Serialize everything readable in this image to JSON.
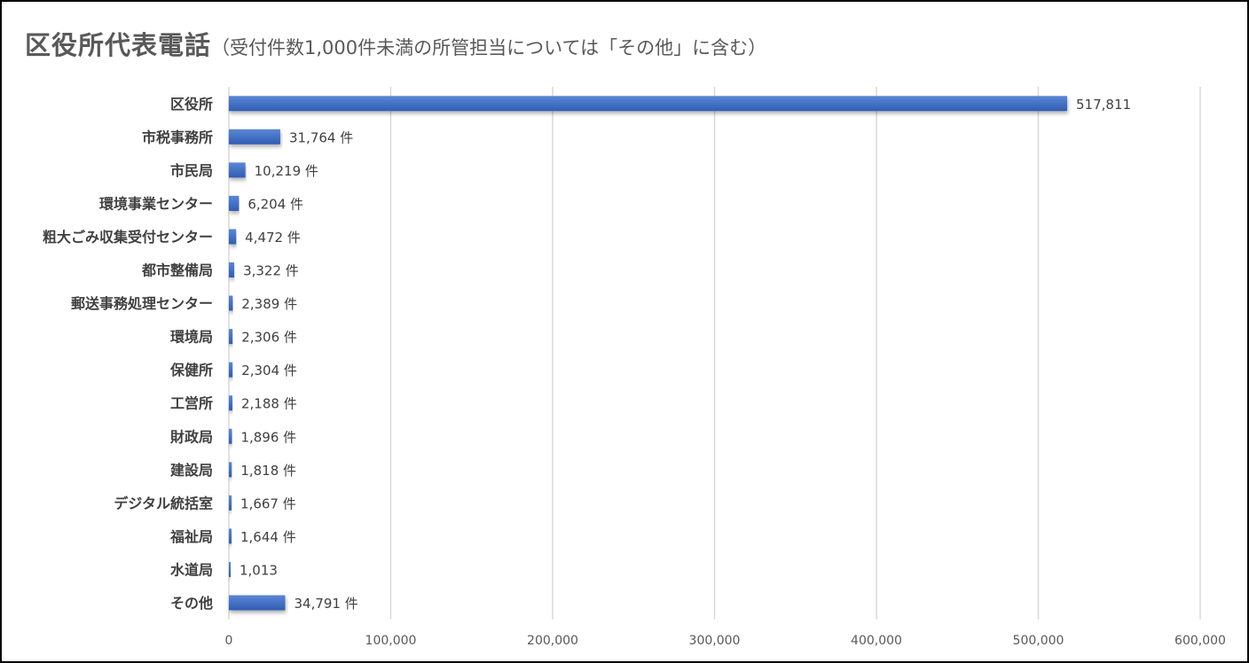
{
  "chart_data": {
    "type": "bar",
    "orientation": "horizontal",
    "title": "区役所代表電話",
    "subtitle": "（受付件数1,000件未満の所管担当については「その他」に含む）",
    "categories": [
      "区役所",
      "市税事務所",
      "市民局",
      "環境事業センター",
      "粗大ごみ収集受付センター",
      "都市整備局",
      "郵送事務処理センター",
      "環境局",
      "保健所",
      "工営所",
      "財政局",
      "建設局",
      "デジタル統括室",
      "福祉局",
      "水道局",
      "その他"
    ],
    "values": [
      517811,
      31764,
      10219,
      6204,
      4472,
      3322,
      2389,
      2306,
      2304,
      2188,
      1896,
      1818,
      1667,
      1644,
      1013,
      34791
    ],
    "data_labels": [
      "517,811",
      "31,764 件",
      "10,219 件",
      "6,204 件",
      "4,472 件",
      "3,322 件",
      "2,389 件",
      "2,306 件",
      "2,304 件",
      "2,188 件",
      "1,896 件",
      "1,818 件",
      "1,667 件",
      "1,644 件",
      "1,013",
      "34,791 件"
    ],
    "xlim": [
      0,
      600000
    ],
    "x_ticks": [
      "0",
      "100,000",
      "200,000",
      "300,000",
      "400,000",
      "500,000",
      "600,000"
    ],
    "grid": true,
    "xlabel": "",
    "ylabel": "",
    "bar_color": "#4472C4"
  }
}
